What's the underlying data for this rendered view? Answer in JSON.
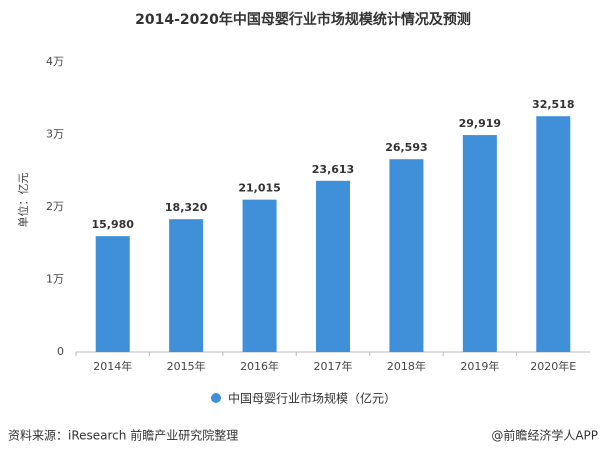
{
  "chart_data": {
    "type": "bar",
    "title": "2014-2020年中国母婴行业市场规模统计情况及预测",
    "y_label": "单位：亿元",
    "categories": [
      "2014年",
      "2015年",
      "2016年",
      "2017年",
      "2018年",
      "2019年",
      "2020年E"
    ],
    "series": [
      {
        "name": "中国母婴行业市场规模（亿元）",
        "color": "#3f8fd9",
        "values": [
          15980,
          18320,
          21015,
          23613,
          26593,
          29919,
          32518
        ],
        "value_labels": [
          "15,980",
          "18,320",
          "21,015",
          "23,613",
          "26,593",
          "29,919",
          "32,518"
        ]
      }
    ],
    "ylim": [
      0,
      40000
    ],
    "yticks": [
      0,
      {
        "value": 10000,
        "label": "1万"
      },
      {
        "value": 20000,
        "label": "2万"
      },
      {
        "value": 30000,
        "label": "3万"
      },
      {
        "value": 40000,
        "label": "4万"
      }
    ],
    "grid": false,
    "legend": "bottom"
  },
  "footer": {
    "source": "资料来源：iResearch 前瞻产业研究院整理",
    "credit": "@前瞻经济学人APP"
  }
}
